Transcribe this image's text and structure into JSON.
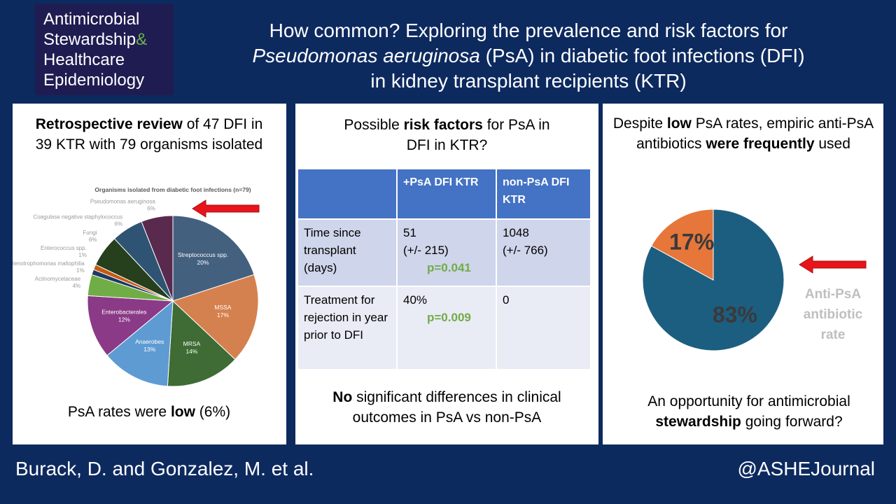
{
  "logo": {
    "lines": [
      "Antimicrobial",
      "Stewardship",
      "Healthcare",
      "Epidemiology"
    ],
    "ampersand": "&"
  },
  "title": {
    "line1": "How common? Exploring the prevalence and risk factors for",
    "line2_italic": "Pseudomonas aeruginosa",
    "line2_rest": " (PsA) in diabetic foot infections (DFI)",
    "line3": "in kidney transplant recipients (KTR)"
  },
  "panel1": {
    "heading": [
      "Retrospective review",
      " of 47 DFI in 39 KTR with 79 organisms isolated"
    ],
    "pie": {
      "type": "pie",
      "title": "Organisms isolated from diabetic foot infections (n=79)",
      "categories": [
        "Streptococcus spp.",
        "MSSA",
        "MRSA",
        "Anaerobes",
        "Enterobacterales",
        "Actinomycetaceae",
        "Stenotrophomonas maltophilia",
        "Enterococcus spp.",
        "Fungi",
        "Coagulase negative staphylococcus",
        "Pseudomonas aeruginosa"
      ],
      "values": [
        20,
        17,
        14,
        13,
        12,
        4,
        1,
        1,
        6,
        6,
        6
      ],
      "value_labels": [
        "20%",
        "17%",
        "14%",
        "13%",
        "12%",
        "4%",
        "1%",
        "1%",
        "6%",
        "6%",
        "6%"
      ],
      "colors": [
        "#44607f",
        "#d5814f",
        "#3f6b34",
        "#5f9bd3",
        "#8a3a86",
        "#70ad47",
        "#1f3864",
        "#c55a11",
        "#263f1c",
        "#2f5473",
        "#5a2a4e"
      ]
    },
    "footer": [
      "PsA rates were ",
      "low",
      " (6%)"
    ]
  },
  "panel2": {
    "heading": [
      "Possible ",
      "risk factors",
      " for PsA in DFI in KTR?"
    ],
    "table": {
      "header": [
        "+PsA DFI KTR",
        "non-PsA DFI KTR"
      ],
      "rows": [
        {
          "label": "Time since transplant (days)",
          "psa": "51\n(+/- 215)",
          "p": "p=0.041",
          "nonpsa": "1048\n(+/- 766)"
        },
        {
          "label": "Treatment for rejection in year prior to DFI",
          "psa": "40%",
          "p": "p=0.009",
          "nonpsa": "0"
        }
      ]
    },
    "footer": [
      "No",
      " significant differences in clinical outcomes in PsA vs non-PsA"
    ]
  },
  "panel3": {
    "heading": [
      "Despite ",
      "low",
      " PsA rates, empiric anti-PsA antibiotics ",
      "were frequently",
      " used"
    ],
    "pie": {
      "type": "pie",
      "values": [
        83,
        17
      ],
      "value_labels": [
        "83%",
        "17%"
      ],
      "colors": [
        "#1c5e80",
        "#e6763a"
      ]
    },
    "pie_label": "Anti-PsA antibiotic rate",
    "footer": [
      "An opportunity for antimicrobial ",
      "stewardship",
      " going forward?"
    ]
  },
  "footer": {
    "authors": "Burack, D. and Gonzalez, M. et al.",
    "handle": "@ASHEJournal"
  }
}
